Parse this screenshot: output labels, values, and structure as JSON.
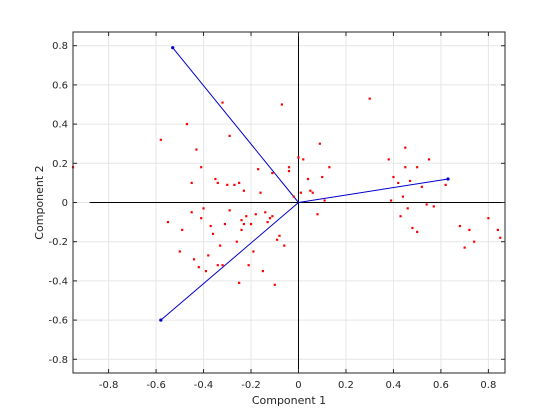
{
  "chart_data": {
    "type": "scatter",
    "subtype": "biplot",
    "title": "",
    "xlabel": "Component 1",
    "ylabel": "Component 2",
    "xlim": [
      -0.95,
      0.87
    ],
    "ylim": [
      -0.87,
      0.87
    ],
    "xticks": [
      -0.8,
      -0.6,
      -0.4,
      -0.2,
      0,
      0.2,
      0.4,
      0.6,
      0.8
    ],
    "yticks": [
      -0.8,
      -0.6,
      -0.4,
      -0.2,
      0,
      0.2,
      0.4,
      0.6,
      0.8
    ],
    "grid": true,
    "zero_lines": true,
    "colors": {
      "points": "#ff0000",
      "vectors": "#0000cc",
      "zero_lines": "#000000",
      "grid": "#e6e6e6"
    },
    "vectors": [
      {
        "x": -0.53,
        "y": 0.79
      },
      {
        "x": -0.58,
        "y": -0.6
      },
      {
        "x": 0.63,
        "y": 0.12
      }
    ],
    "points": [
      [
        -0.95,
        0.18
      ],
      [
        -0.58,
        0.32
      ],
      [
        -0.55,
        -0.1
      ],
      [
        -0.5,
        -0.25
      ],
      [
        -0.49,
        -0.14
      ],
      [
        -0.47,
        0.4
      ],
      [
        -0.45,
        -0.05
      ],
      [
        -0.45,
        0.1
      ],
      [
        -0.44,
        -0.29
      ],
      [
        -0.43,
        0.27
      ],
      [
        -0.42,
        -0.33
      ],
      [
        -0.41,
        -0.08
      ],
      [
        -0.41,
        0.18
      ],
      [
        -0.4,
        -0.03
      ],
      [
        -0.39,
        -0.35
      ],
      [
        -0.38,
        -0.27
      ],
      [
        -0.37,
        -0.12
      ],
      [
        -0.36,
        -0.16
      ],
      [
        -0.35,
        0.12
      ],
      [
        -0.34,
        -0.32
      ],
      [
        -0.34,
        0.1
      ],
      [
        -0.33,
        -0.22
      ],
      [
        -0.32,
        -0.32
      ],
      [
        -0.32,
        0.51
      ],
      [
        -0.31,
        -0.11
      ],
      [
        -0.3,
        0.09
      ],
      [
        -0.29,
        0.34
      ],
      [
        -0.29,
        -0.04
      ],
      [
        -0.27,
        0.09
      ],
      [
        -0.26,
        -0.2
      ],
      [
        -0.25,
        0.1
      ],
      [
        -0.25,
        -0.41
      ],
      [
        -0.24,
        -0.09
      ],
      [
        -0.24,
        -0.14
      ],
      [
        -0.23,
        0.06
      ],
      [
        -0.23,
        -0.11
      ],
      [
        -0.22,
        -0.07
      ],
      [
        -0.21,
        -0.32
      ],
      [
        -0.2,
        -0.11
      ],
      [
        -0.19,
        -0.25
      ],
      [
        -0.18,
        -0.06
      ],
      [
        -0.17,
        0.17
      ],
      [
        -0.16,
        0.05
      ],
      [
        -0.15,
        -0.35
      ],
      [
        -0.14,
        -0.05
      ],
      [
        -0.13,
        -0.1
      ],
      [
        -0.12,
        -0.08
      ],
      [
        -0.11,
        0.15
      ],
      [
        -0.11,
        -0.07
      ],
      [
        -0.1,
        -0.42
      ],
      [
        -0.09,
        -0.19
      ],
      [
        -0.08,
        -0.17
      ],
      [
        -0.07,
        0.5
      ],
      [
        -0.06,
        -0.22
      ],
      [
        -0.04,
        0.18
      ],
      [
        -0.04,
        0.16
      ],
      [
        -0.02,
        0.03
      ],
      [
        0.0,
        0.23
      ],
      [
        0.01,
        0.05
      ],
      [
        0.02,
        0.22
      ],
      [
        0.04,
        0.12
      ],
      [
        0.05,
        0.06
      ],
      [
        0.06,
        0.05
      ],
      [
        0.08,
        -0.06
      ],
      [
        0.09,
        0.3
      ],
      [
        0.1,
        0.13
      ],
      [
        0.11,
        0.01
      ],
      [
        0.13,
        0.18
      ],
      [
        0.3,
        0.53
      ],
      [
        0.38,
        0.22
      ],
      [
        0.39,
        0.01
      ],
      [
        0.4,
        0.13
      ],
      [
        0.42,
        0.1
      ],
      [
        0.43,
        -0.07
      ],
      [
        0.44,
        0.03
      ],
      [
        0.45,
        0.28
      ],
      [
        0.45,
        0.18
      ],
      [
        0.46,
        -0.03
      ],
      [
        0.47,
        0.11
      ],
      [
        0.48,
        -0.13
      ],
      [
        0.5,
        0.18
      ],
      [
        0.5,
        -0.15
      ],
      [
        0.52,
        0.08
      ],
      [
        0.54,
        -0.01
      ],
      [
        0.55,
        0.22
      ],
      [
        0.57,
        -0.02
      ],
      [
        0.62,
        0.09
      ],
      [
        0.68,
        -0.12
      ],
      [
        0.7,
        -0.23
      ],
      [
        0.72,
        -0.14
      ],
      [
        0.74,
        -0.2
      ],
      [
        0.8,
        -0.08
      ],
      [
        0.84,
        -0.14
      ],
      [
        0.85,
        -0.18
      ]
    ]
  }
}
